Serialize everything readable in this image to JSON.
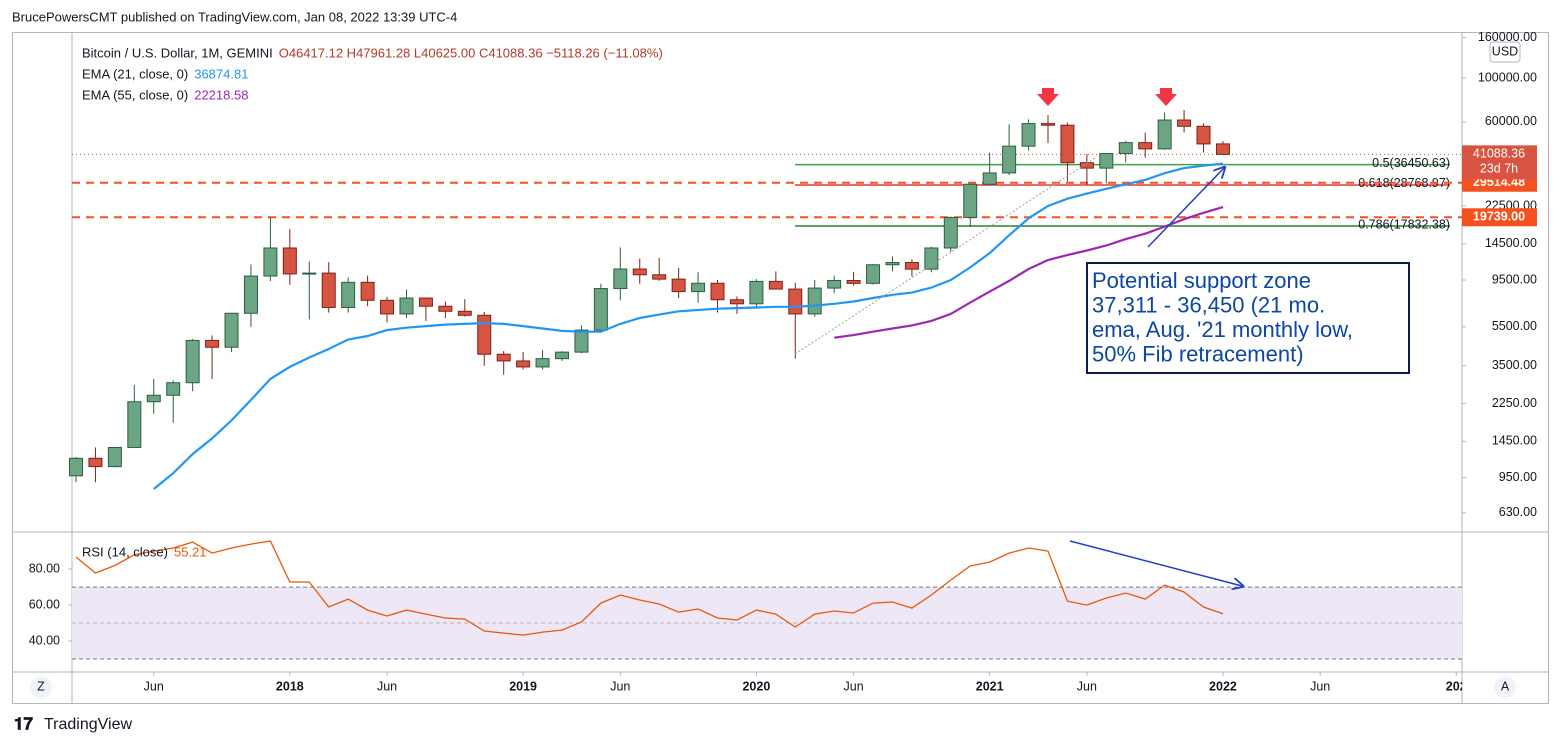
{
  "header": "BrucePowersCMT published on TradingView.com, Jan 08, 2022 13:39 UTC-4",
  "footer": "TradingView",
  "ui_buttons": [
    "Z",
    "A"
  ],
  "chart_data": [
    {
      "type": "candlestick",
      "title": "Bitcoin / U.S. Dollar, 1M, GEMINI",
      "ohlc_label": "O46417.12 H47961.28 L40625.00 C41088.36 −5118.26 (−11.08%)",
      "x": [
        "2017-02",
        "2017-03",
        "2017-04",
        "2017-05",
        "2017-06",
        "2017-07",
        "2017-08",
        "2017-09",
        "2017-10",
        "2017-11",
        "2017-12",
        "2018-01",
        "2018-02",
        "2018-03",
        "2018-04",
        "2018-05",
        "2018-06",
        "2018-07",
        "2018-08",
        "2018-09",
        "2018-10",
        "2018-11",
        "2018-12",
        "2019-01",
        "2019-02",
        "2019-03",
        "2019-04",
        "2019-05",
        "2019-06",
        "2019-07",
        "2019-08",
        "2019-09",
        "2019-10",
        "2019-11",
        "2019-12",
        "2020-01",
        "2020-02",
        "2020-03",
        "2020-04",
        "2020-05",
        "2020-06",
        "2020-07",
        "2020-08",
        "2020-09",
        "2020-10",
        "2020-11",
        "2020-12",
        "2021-01",
        "2021-02",
        "2021-03",
        "2021-04",
        "2021-05",
        "2021-06",
        "2021-07",
        "2021-08",
        "2021-09",
        "2021-10",
        "2021-11",
        "2021-12",
        "2022-01"
      ],
      "open": [
        970,
        1190,
        1080,
        1350,
        2300,
        2480,
        2870,
        4700,
        4340,
        6450,
        9950,
        13800,
        10200,
        10300,
        6900,
        9250,
        7500,
        6400,
        7700,
        7000,
        6600,
        6300,
        4000,
        3700,
        3450,
        3800,
        4100,
        5300,
        8600,
        10800,
        10100,
        9600,
        8300,
        9150,
        7550,
        7200,
        9350,
        8550,
        6400,
        8650,
        9450,
        9140,
        11350,
        11650,
        10780,
        13800,
        19700,
        29000,
        33100,
        45200,
        58800,
        57700,
        37300,
        35000,
        41500,
        47100,
        43800,
        61300,
        57000,
        46417.12
      ],
      "high": [
        1210,
        1350,
        1350,
        2800,
        3000,
        2950,
        4780,
        4980,
        6450,
        11400,
        19800,
        17200,
        11800,
        11700,
        9800,
        10000,
        7800,
        8500,
        7750,
        7400,
        7600,
        6550,
        4150,
        4100,
        4200,
        4150,
        5600,
        9100,
        13900,
        12200,
        12300,
        10950,
        10400,
        9500,
        7850,
        9600,
        10500,
        9200,
        9500,
        10000,
        10450,
        11450,
        12500,
        12100,
        14000,
        19900,
        29300,
        42000,
        58300,
        61800,
        64900,
        59600,
        41300,
        39900,
        48100,
        52900,
        67000,
        69000,
        59000,
        47961.28
      ],
      "low": [
        900,
        900,
        1070,
        1350,
        2000,
        1800,
        2600,
        3000,
        4100,
        5500,
        9400,
        9000,
        6000,
        6500,
        6500,
        7000,
        5800,
        6100,
        5900,
        6100,
        6200,
        3500,
        3150,
        3350,
        3350,
        3700,
        4050,
        5300,
        7500,
        9100,
        9400,
        7700,
        7300,
        6500,
        6400,
        6900,
        8500,
        3800,
        6200,
        8150,
        8900,
        9000,
        10500,
        9900,
        10400,
        13200,
        17600,
        28800,
        32300,
        43000,
        47000,
        30000,
        28800,
        29300,
        37400,
        39600,
        43300,
        53000,
        42000,
        40625.0
      ],
      "close": [
        1190,
        1080,
        1350,
        2300,
        2480,
        2870,
        4700,
        4340,
        6450,
        9950,
        13800,
        10200,
        10300,
        6900,
        9250,
        7500,
        6400,
        7700,
        7000,
        6600,
        6300,
        4000,
        3700,
        3450,
        3800,
        4100,
        5300,
        8600,
        10800,
        10100,
        9600,
        8300,
        9150,
        7550,
        7200,
        9350,
        8550,
        6400,
        8650,
        9450,
        9140,
        11350,
        11650,
        10780,
        13800,
        19700,
        29000,
        33100,
        45200,
        58800,
        57700,
        37300,
        35000,
        41500,
        47100,
        43800,
        61300,
        57000,
        46400,
        41088.36
      ],
      "up_color": "#6ba583",
      "down_color": "#d75442",
      "series": [
        {
          "name": "EMA (21, close, 0)",
          "color": "#2196f3",
          "values": [
            null,
            null,
            null,
            null,
            832,
            1000,
            1250,
            1500,
            1850,
            2350,
            3000,
            3450,
            3850,
            4250,
            4750,
            4950,
            5300,
            5450,
            5550,
            5650,
            5700,
            5750,
            5700,
            5550,
            5400,
            5250,
            5200,
            5200,
            5700,
            6100,
            6350,
            6600,
            6700,
            6800,
            6850,
            6900,
            6950,
            6950,
            7050,
            7200,
            7400,
            7700,
            8000,
            8200,
            8700,
            9500,
            11000,
            13000,
            16000,
            19500,
            22500,
            24500,
            26000,
            27500,
            29000,
            30500,
            33000,
            35000,
            36000,
            36874.81
          ]
        },
        {
          "name": "EMA (55, close, 0)",
          "color": "#9c27b0",
          "values": [
            null,
            null,
            null,
            null,
            null,
            null,
            null,
            null,
            null,
            null,
            null,
            null,
            null,
            null,
            null,
            null,
            null,
            null,
            null,
            null,
            null,
            null,
            null,
            null,
            null,
            null,
            null,
            null,
            null,
            null,
            null,
            null,
            null,
            null,
            null,
            null,
            null,
            null,
            null,
            4850,
            5000,
            5200,
            5400,
            5600,
            5900,
            6400,
            7300,
            8300,
            9400,
            10800,
            12000,
            12700,
            13400,
            14200,
            15300,
            16300,
            17700,
            19300,
            20800,
            22218.58
          ]
        }
      ],
      "log_scale": true,
      "ylim": [
        504,
        171000
      ],
      "yticks": [
        {
          "value": 630,
          "label": "630.00"
        },
        {
          "value": 950,
          "label": "950.00"
        },
        {
          "value": 1450,
          "label": "1450.00"
        },
        {
          "value": 2250,
          "label": "2250.00"
        },
        {
          "value": 3500,
          "label": "3500.00"
        },
        {
          "value": 5500,
          "label": "5500.00"
        },
        {
          "value": 9500,
          "label": "9500.00"
        },
        {
          "value": 14500,
          "label": "14500.00"
        },
        {
          "value": 22500,
          "label": "22500.00"
        },
        {
          "value": 60000,
          "label": "60000.00"
        },
        {
          "value": 100000,
          "label": "100000.00"
        },
        {
          "value": 160000,
          "label": "160000.00"
        }
      ],
      "currency": "USD",
      "countdown": "23d 7h",
      "levels": [
        {
          "value": 29514.48,
          "label": "29514.48"
        },
        {
          "value": 19739,
          "label": "19739.00"
        }
      ],
      "level_color": "#f4511e",
      "fib": [
        {
          "value": 36450.63,
          "label": "0.5(36450.63)",
          "color": "#43a047"
        },
        {
          "value": 28768.97,
          "label": "0.618(28768.97)",
          "color": "#e53935"
        },
        {
          "value": 17832.38,
          "label": "0.786(17832.38)",
          "color": "#2e7d32"
        }
      ],
      "annotation": [
        "Potential support zone",
        "37,311 - 36,450 (21 mo.",
        "ema, Aug. '21 monthly low,",
        "50% Fib retracement)"
      ],
      "xticks": [
        {
          "value": "2017-06",
          "label": "Jun"
        },
        {
          "value": "2018-01",
          "label": "2018"
        },
        {
          "value": "2018-06",
          "label": "Jun"
        },
        {
          "value": "2019-01",
          "label": "2019"
        },
        {
          "value": "2019-06",
          "label": "Jun"
        },
        {
          "value": "2020-01",
          "label": "2020"
        },
        {
          "value": "2020-06",
          "label": "Jun"
        },
        {
          "value": "2021-01",
          "label": "2021"
        },
        {
          "value": "2021-06",
          "label": "Jun"
        },
        {
          "value": "2022-01",
          "label": "2022"
        },
        {
          "value": "2022-06",
          "label": "Jun"
        },
        {
          "value": "2023-01",
          "label": "202"
        }
      ]
    },
    {
      "type": "line",
      "series": [
        {
          "name": "RSI (14, close)",
          "color": "#e8590c",
          "values": [
            86.7,
            77.8,
            82,
            88,
            90,
            91.7,
            95,
            88.9,
            91.7,
            93.9,
            95.6,
            72.8,
            72.8,
            58.9,
            63.3,
            57.2,
            53.9,
            57.2,
            55,
            52.8,
            52.2,
            45.6,
            44.4,
            43.3,
            45,
            46.1,
            50.6,
            61.1,
            65.6,
            62.8,
            60.6,
            56.1,
            57.8,
            52.8,
            51.7,
            57.2,
            55,
            47.8,
            55,
            56.7,
            55.6,
            61.1,
            61.7,
            58.3,
            65.6,
            73.9,
            81.7,
            83.9,
            88.9,
            91.7,
            90,
            62.2,
            60,
            63.9,
            66.7,
            63.3,
            71.1,
            67.2,
            58.9,
            55.21
          ]
        }
      ],
      "ylim": [
        22.8,
        100.6
      ],
      "yticks": [
        {
          "value": 40,
          "label": "40.00"
        },
        {
          "value": 60,
          "label": "60.00"
        },
        {
          "value": 80,
          "label": "80.00"
        }
      ],
      "band": [
        30,
        70
      ],
      "midline": 50,
      "band_color": "#ede7f6"
    }
  ]
}
